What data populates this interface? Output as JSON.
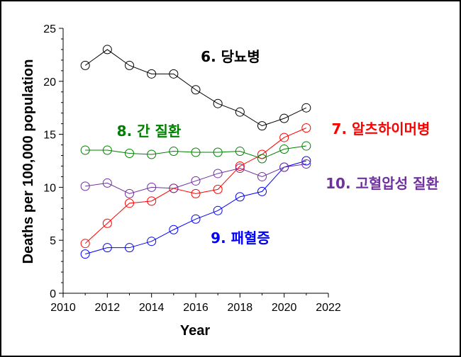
{
  "chart_data": {
    "type": "line",
    "title": "",
    "xlabel": "Year",
    "ylabel": "Deaths per 100,000 population",
    "xlim": [
      2010,
      2022
    ],
    "ylim": [
      0,
      25
    ],
    "xticks": [
      "2010",
      "2012",
      "2014",
      "2016",
      "2018",
      "2020",
      "2022"
    ],
    "yticks": [
      "0",
      "5",
      "10",
      "15",
      "20",
      "25"
    ],
    "grid": false,
    "legend": "none",
    "x": [
      2011,
      2012,
      2013,
      2014,
      2015,
      2016,
      2017,
      2018,
      2019,
      2020,
      2021
    ],
    "series": [
      {
        "name": "6. 당뇨병",
        "color": "#000000",
        "values": [
          21.5,
          23.0,
          21.5,
          20.7,
          20.7,
          19.2,
          17.9,
          17.1,
          15.8,
          16.5,
          17.5
        ]
      },
      {
        "name": "7. 알츠하이머병",
        "color": "#ff0000",
        "values": [
          4.7,
          6.6,
          8.5,
          8.7,
          9.9,
          9.4,
          9.8,
          12.0,
          13.1,
          14.7,
          15.6
        ]
      },
      {
        "name": "8. 간 질환",
        "color": "#008000",
        "values": [
          13.5,
          13.5,
          13.2,
          13.1,
          13.4,
          13.3,
          13.3,
          13.4,
          12.7,
          13.6,
          13.9
        ]
      },
      {
        "name": "9. 패혈증",
        "color": "#0000ff",
        "values": [
          3.7,
          4.3,
          4.3,
          4.9,
          6.0,
          7.0,
          7.8,
          9.1,
          9.6,
          11.9,
          12.5
        ]
      },
      {
        "name": "10. 고혈압성 질환",
        "color": "#7030a0",
        "values": [
          10.1,
          10.4,
          9.4,
          10.0,
          9.9,
          10.6,
          11.3,
          11.8,
          11.0,
          11.9,
          12.2
        ]
      }
    ]
  }
}
